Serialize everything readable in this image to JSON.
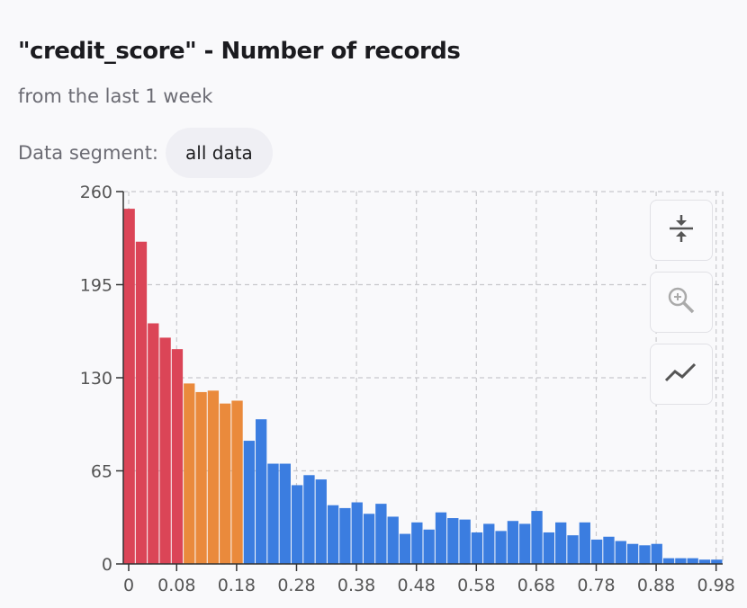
{
  "header": {
    "title": "\"credit_score\" - Number of records",
    "subtitle": "from the last 1 week"
  },
  "segment": {
    "label": "Data segment:",
    "value": "all data"
  },
  "toolbar": {
    "buttons": [
      {
        "icon": "compress-icon"
      },
      {
        "icon": "zoom-in-icon"
      },
      {
        "icon": "trend-line-icon"
      }
    ]
  },
  "chart_data": {
    "type": "bar",
    "title": "\"credit_score\" - Number of records",
    "xlim": [
      0,
      1.0
    ],
    "ylim": [
      0,
      260
    ],
    "yticks": [
      0,
      65,
      130,
      195,
      260
    ],
    "xticks": [
      0,
      0.08,
      0.18,
      0.28,
      0.38,
      0.48,
      0.58,
      0.68,
      0.78,
      0.88,
      0.98
    ],
    "ytick_labels": [
      "0",
      "65",
      "130",
      "195",
      "260"
    ],
    "xtick_labels": [
      "0",
      "0.08",
      "0.18",
      "0.28",
      "0.38",
      "0.48",
      "0.58",
      "0.68",
      "0.78",
      "0.88",
      "0.98"
    ],
    "bin_width": 0.02,
    "colors": {
      "red": "#db4557",
      "orange": "#ea8a3c",
      "blue": "#3b7de0"
    },
    "bins": [
      {
        "x": 0.0,
        "value": 248,
        "color": "red"
      },
      {
        "x": 0.02,
        "value": 225,
        "color": "red"
      },
      {
        "x": 0.04,
        "value": 168,
        "color": "red"
      },
      {
        "x": 0.06,
        "value": 158,
        "color": "red"
      },
      {
        "x": 0.08,
        "value": 150,
        "color": "red"
      },
      {
        "x": 0.1,
        "value": 126,
        "color": "orange"
      },
      {
        "x": 0.12,
        "value": 120,
        "color": "orange"
      },
      {
        "x": 0.14,
        "value": 121,
        "color": "orange"
      },
      {
        "x": 0.16,
        "value": 112,
        "color": "orange"
      },
      {
        "x": 0.18,
        "value": 114,
        "color": "orange"
      },
      {
        "x": 0.2,
        "value": 86,
        "color": "blue"
      },
      {
        "x": 0.22,
        "value": 101,
        "color": "blue"
      },
      {
        "x": 0.24,
        "value": 70,
        "color": "blue"
      },
      {
        "x": 0.26,
        "value": 70,
        "color": "blue"
      },
      {
        "x": 0.28,
        "value": 55,
        "color": "blue"
      },
      {
        "x": 0.3,
        "value": 62,
        "color": "blue"
      },
      {
        "x": 0.32,
        "value": 59,
        "color": "blue"
      },
      {
        "x": 0.34,
        "value": 41,
        "color": "blue"
      },
      {
        "x": 0.36,
        "value": 39,
        "color": "blue"
      },
      {
        "x": 0.38,
        "value": 43,
        "color": "blue"
      },
      {
        "x": 0.4,
        "value": 35,
        "color": "blue"
      },
      {
        "x": 0.42,
        "value": 42,
        "color": "blue"
      },
      {
        "x": 0.44,
        "value": 33,
        "color": "blue"
      },
      {
        "x": 0.46,
        "value": 21,
        "color": "blue"
      },
      {
        "x": 0.48,
        "value": 29,
        "color": "blue"
      },
      {
        "x": 0.5,
        "value": 24,
        "color": "blue"
      },
      {
        "x": 0.52,
        "value": 36,
        "color": "blue"
      },
      {
        "x": 0.54,
        "value": 32,
        "color": "blue"
      },
      {
        "x": 0.56,
        "value": 31,
        "color": "blue"
      },
      {
        "x": 0.58,
        "value": 22,
        "color": "blue"
      },
      {
        "x": 0.6,
        "value": 28,
        "color": "blue"
      },
      {
        "x": 0.62,
        "value": 23,
        "color": "blue"
      },
      {
        "x": 0.64,
        "value": 30,
        "color": "blue"
      },
      {
        "x": 0.66,
        "value": 28,
        "color": "blue"
      },
      {
        "x": 0.68,
        "value": 37,
        "color": "blue"
      },
      {
        "x": 0.7,
        "value": 22,
        "color": "blue"
      },
      {
        "x": 0.72,
        "value": 29,
        "color": "blue"
      },
      {
        "x": 0.74,
        "value": 20,
        "color": "blue"
      },
      {
        "x": 0.76,
        "value": 29,
        "color": "blue"
      },
      {
        "x": 0.78,
        "value": 17,
        "color": "blue"
      },
      {
        "x": 0.8,
        "value": 19,
        "color": "blue"
      },
      {
        "x": 0.82,
        "value": 16,
        "color": "blue"
      },
      {
        "x": 0.84,
        "value": 14,
        "color": "blue"
      },
      {
        "x": 0.86,
        "value": 13,
        "color": "blue"
      },
      {
        "x": 0.88,
        "value": 14,
        "color": "blue"
      },
      {
        "x": 0.9,
        "value": 4,
        "color": "blue"
      },
      {
        "x": 0.92,
        "value": 4,
        "color": "blue"
      },
      {
        "x": 0.94,
        "value": 4,
        "color": "blue"
      },
      {
        "x": 0.96,
        "value": 3,
        "color": "blue"
      },
      {
        "x": 0.98,
        "value": 3,
        "color": "blue"
      }
    ]
  }
}
